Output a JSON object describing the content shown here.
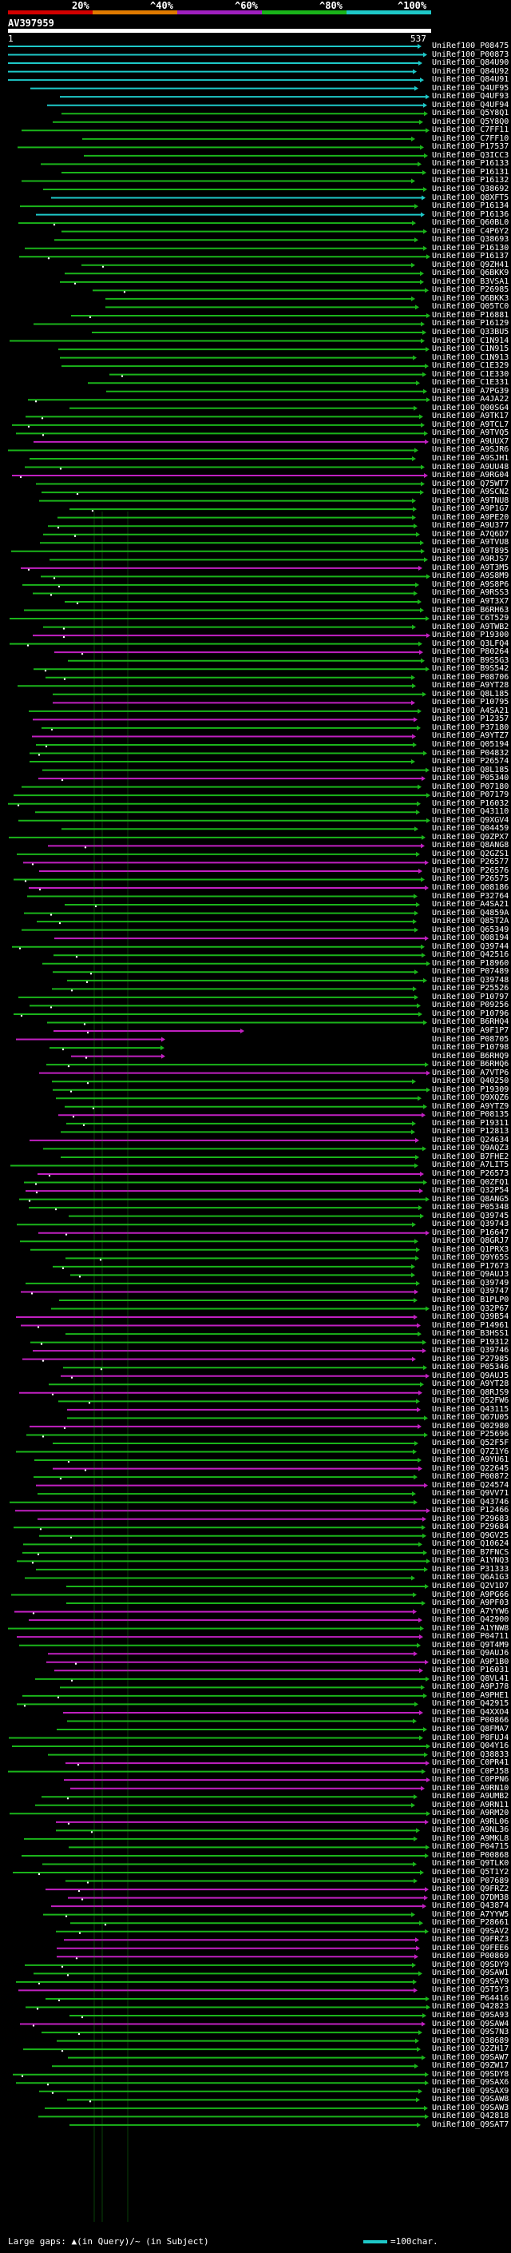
{
  "scale": {
    "labels": [
      "20%",
      "^40%",
      "^60%",
      "^80%",
      "^100%"
    ],
    "colors": [
      "#d20000",
      "#e07a00",
      "#a020c0",
      "#1ab41a",
      "#1ec8c8"
    ]
  },
  "query": {
    "name": "AV397959",
    "start": "1",
    "end": "537"
  },
  "footer": {
    "legend": "Large gaps: ▲(in Query)/~ (in Subject)",
    "scale_label": "=100char."
  },
  "hits": [
    "UniRef100_P08475",
    "UniRef100_P00873",
    "UniRef100_Q84U90",
    "UniRef100_Q84U92",
    "UniRef100_Q84U91",
    "UniRef100_Q4UF95",
    "UniRef100_Q4UF93",
    "UniRef100_Q4UF94",
    "UniRef100_Q5Y8Q1",
    "UniRef100_Q5Y8Q0",
    "UniRef100_C7FF11",
    "UniRef100_C7FF10",
    "UniRef100_P17537",
    "UniRef100_Q3ICC3",
    "UniRef100_P16133",
    "UniRef100_P16131",
    "UniRef100_P16132",
    "UniRef100_Q38692",
    "UniRef100_Q8XFT5",
    "UniRef100_P16134",
    "UniRef100_P16136",
    "UniRef100_Q60BL0",
    "UniRef100_C4P6Y2",
    "UniRef100_Q38693",
    "UniRef100_P16130",
    "UniRef100_P16137",
    "UniRef100_Q9ZH41",
    "UniRef100_Q6BKK9",
    "UniRef100_B3VSA1",
    "UniRef100_P26985",
    "UniRef100_Q6BKK3",
    "UniRef100_Q05TC0",
    "UniRef100_P16881",
    "UniRef100_P16129",
    "UniRef100_Q33BU5",
    "UniRef100_C1N914",
    "UniRef100_C1N915",
    "UniRef100_C1N913",
    "UniRef100_C1E329",
    "UniRef100_C1E330",
    "UniRef100_C1E331",
    "UniRef100_A7PG39",
    "UniRef100_A4JA22",
    "UniRef100_Q00SG4",
    "UniRef100_A9TK17",
    "UniRef100_A9TCL7",
    "UniRef100_A9TVQ5",
    "UniRef100_A9UUX7",
    "UniRef100_A9SJR6",
    "UniRef100_A9SJH1",
    "UniRef100_A9UU48",
    "UniRef100_A9RG04",
    "UniRef100_Q75WT7",
    "UniRef100_A9SCN2",
    "UniRef100_A9TNU8",
    "UniRef100_A9P1G7",
    "UniRef100_A9PE20",
    "UniRef100_A9U377",
    "UniRef100_A7Q6D7",
    "UniRef100_A9TVU8",
    "UniRef100_A9T895",
    "UniRef100_A9RJS7",
    "UniRef100_A9T3M5",
    "UniRef100_A9S8M9",
    "UniRef100_A9S8P6",
    "UniRef100_A9RSS3",
    "UniRef100_A9T3X7",
    "UniRef100_B6RH63",
    "UniRef100_C6T529",
    "UniRef100_A9TWB2",
    "UniRef100_P19300",
    "UniRef100_Q3LFQ4",
    "UniRef100_P80264",
    "UniRef100_B9S5G3",
    "UniRef100_B9S542",
    "UniRef100_P08706",
    "UniRef100_A9YT28",
    "UniRef100_Q8L185",
    "UniRef100_P10795",
    "UniRef100_A4SA21",
    "UniRef100_P12357",
    "UniRef100_P37180",
    "UniRef100_A9YTZ7",
    "UniRef100_Q05194",
    "UniRef100_P04832",
    "UniRef100_P26574",
    "UniRef100_Q8L185",
    "UniRef100_P05340",
    "UniRef100_P07180",
    "UniRef100_P07179",
    "UniRef100_P16032",
    "UniRef100_Q43110",
    "UniRef100_Q9XGV4",
    "UniRef100_Q04459",
    "UniRef100_Q9ZPX7",
    "UniRef100_Q8ANG8",
    "UniRef100_Q2GZS1",
    "UniRef100_P26577",
    "UniRef100_P26576",
    "UniRef100_P26575",
    "UniRef100_Q08186",
    "UniRef100_P32764",
    "UniRef100_A4SA21",
    "UniRef100_Q4859A",
    "UniRef100_Q85T2A",
    "UniRef100_Q65349",
    "UniRef100_Q08194",
    "UniRef100_Q39744",
    "UniRef100_Q42516",
    "UniRef100_P18960",
    "UniRef100_P07489",
    "UniRef100_Q39748",
    "UniRef100_P25526",
    "UniRef100_P10797",
    "UniRef100_P09256",
    "UniRef100_P10796",
    "UniRef100_B6RHQ4",
    "UniRef100_A9F1P7",
    "UniRef100_P08705",
    "UniRef100_P10798",
    "UniRef100_B6RHQ9",
    "UniRef100_B6RHQ6",
    "UniRef100_A7VTP6",
    "UniRef100_Q40250",
    "UniRef100_P19309",
    "UniRef100_Q9XQZ6",
    "UniRef100_A9YTZ9",
    "UniRef100_P08135",
    "UniRef100_P19311",
    "UniRef100_P12813",
    "UniRef100_Q24634",
    "UniRef100_Q9AQZ3",
    "UniRef100_B7FHE2",
    "UniRef100_A7LIT5",
    "UniRef100_P26573",
    "UniRef100_Q0ZFQ1",
    "UniRef100_Q32P54",
    "UniRef100_Q8ANG5",
    "UniRef100_P05348",
    "UniRef100_Q39745",
    "UniRef100_Q39743",
    "UniRef100_P16647",
    "UniRef100_Q8GRJ7",
    "UniRef100_Q1PRX3",
    "UniRef100_Q9Y65S",
    "UniRef100_P17673",
    "UniRef100_Q9AUJ3",
    "UniRef100_Q39749",
    "UniRef100_Q39747",
    "UniRef100_B1PLP0",
    "UniRef100_Q32P67",
    "UniRef100_Q39B54",
    "UniRef100_P14961",
    "UniRef100_B3HSS1",
    "UniRef100_P19312",
    "UniRef100_Q39746",
    "UniRef100_P27985",
    "UniRef100_P05346",
    "UniRef100_Q9AUJ5",
    "UniRef100_A9YT28",
    "UniRef100_Q8RJS9",
    "UniRef100_Q52FW6",
    "UniRef100_Q43115",
    "UniRef100_Q67U05",
    "UniRef100_Q02980",
    "UniRef100_P25696",
    "UniRef100_Q52F5F",
    "UniRef100_Q7Z1Y6",
    "UniRef100_A9YU61",
    "UniRef100_Q22645",
    "UniRef100_P00872",
    "UniRef100_Q24574",
    "UniRef100_Q9VV71",
    "UniRef100_Q43746",
    "UniRef100_P12466",
    "UniRef100_P29683",
    "UniRef100_P29684",
    "UniRef100_Q9GV25",
    "UniRef100_Q10624",
    "UniRef100_B7FNCS",
    "UniRef100_A1YNQ3",
    "UniRef100_P31333",
    "UniRef100_Q6A1G3",
    "UniRef100_Q2V1D7",
    "UniRef100_A9PG66",
    "UniRef100_A9PF03",
    "UniRef100_A7YYW6",
    "UniRef100_Q42900",
    "UniRef100_A1YNW8",
    "UniRef100_P04711",
    "UniRef100_Q9T4M9",
    "UniRef100_Q9AUJ6",
    "UniRef100_A9P1B0",
    "UniRef100_P16031",
    "UniRef100_Q8VL41",
    "UniRef100_A9PJ78",
    "UniRef100_A9PHE1",
    "UniRef100_Q42915",
    "UniRef100_Q4XXO4",
    "UniRef100_P00866",
    "UniRef100_Q8FMA7",
    "UniRef100_P8FUJ4",
    "UniRef100_Q04Y16",
    "UniRef100_Q38833",
    "UniRef100_C0PR41",
    "UniRef100_C0PJ58",
    "UniRef100_C0PPN6",
    "UniRef100_A9RN10",
    "UniRef100_A9UMB2",
    "UniRef100_A9RN11",
    "UniRef100_A9RM20",
    "UniRef100_A9RL06",
    "UniRef100_A9NL36",
    "UniRef100_A9MKL8",
    "UniRef100_P04715",
    "UniRef100_P00868",
    "UniRef100_Q9TLK0",
    "UniRef100_Q5T1Y2",
    "UniRef100_P07689",
    "UniRef100_Q9FRZ2",
    "UniRef100_Q7DM38",
    "UniRef100_Q43874",
    "UniRef100_A7YYW5",
    "UniRef100_P28661",
    "UniRef100_Q9SAV2",
    "UniRef100_Q9FRZ3",
    "UniRef100_Q9FEE6",
    "UniRef100_P00869",
    "UniRef100_Q9SDY9",
    "UniRef100_Q9SAW1",
    "UniRef100_Q9SAY9",
    "UniRef100_Q5T5Y3",
    "UniRef100_P64416",
    "UniRef100_Q42823",
    "UniRef100_Q9SA93",
    "UniRef100_Q9SAW4",
    "UniRef100_Q9S7N3",
    "UniRef100_Q38689",
    "UniRef100_Q2ZH17",
    "UniRef100_Q9SAW7",
    "UniRef100_Q9ZW17",
    "UniRef100_Q9SDY8",
    "UniRef100_Q9SAX6",
    "UniRef100_Q9SAX9",
    "UniRef100_Q9SAW8",
    "UniRef100_Q9SAW3",
    "UniRef100_Q42818",
    "UniRef100_Q9SAT7"
  ]
}
